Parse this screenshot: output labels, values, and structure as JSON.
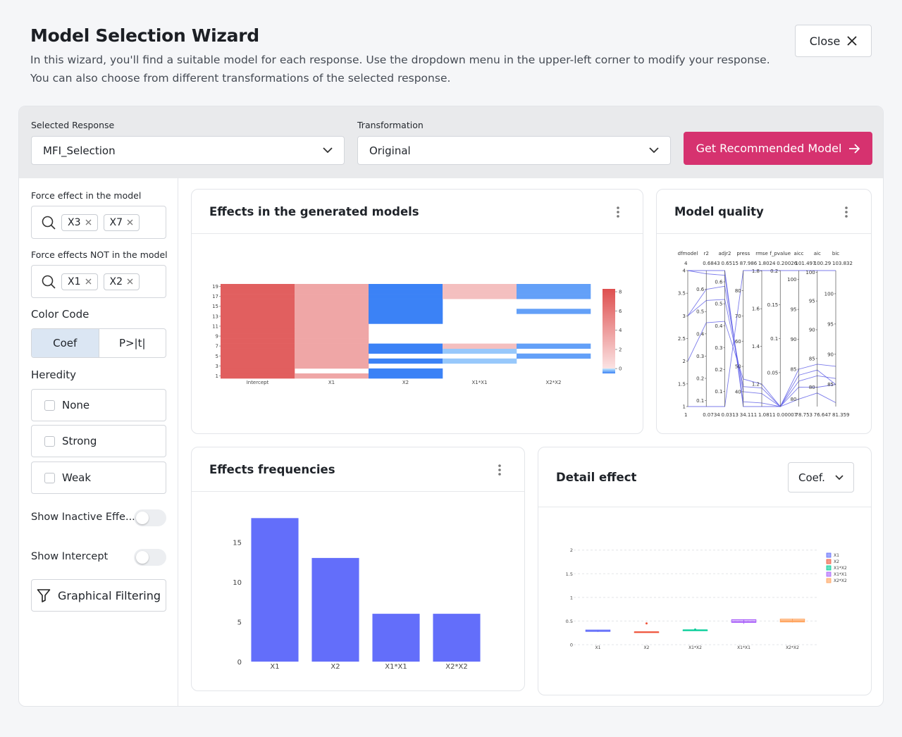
{
  "header": {
    "title": "Model Selection Wizard",
    "description": [
      "In this wizard, you'll find a suitable model for each response. Use the dropdown menu in the upper-left corner to modify your response.",
      "You can also choose from different transformations of the selected response."
    ],
    "close_button": "Close"
  },
  "controls": {
    "response_label": "Selected Response",
    "response_value": "MFI_Selection",
    "transformation_label": "Transformation",
    "transformation_value": "Original",
    "action_button": "Get Recommended Model"
  },
  "sidebar": {
    "force_in_label": "Force effect in the model",
    "force_in_chips": [
      "X3",
      "X7"
    ],
    "force_out_label": "Force effects NOT in the model",
    "force_out_chips": [
      "X1",
      "X2"
    ],
    "color_code_label": "Color Code",
    "color_code_options": [
      "Coef",
      "P>|t|"
    ],
    "heredity_label": "Heredity",
    "heredity_options": [
      "None",
      "Strong",
      "Weak"
    ],
    "toggles": [
      "Show Inactive Effe...",
      "Show Intercept"
    ],
    "filter_button": "Graphical Filtering"
  },
  "panels": [
    {
      "title": "Effects in the generated models",
      "chart_data": {
        "type": "heatmap",
        "x": [
          "Intercept",
          "X1",
          "X2",
          "X1*X1",
          "X2*X2"
        ],
        "y": [
          1,
          2,
          3,
          4,
          5,
          6,
          7,
          8,
          9,
          10,
          11,
          12,
          13,
          14,
          15,
          16,
          17,
          18,
          19
        ],
        "ylim": [
          0.5,
          19.5
        ],
        "yticks": [
          1,
          3,
          5,
          7,
          9,
          11,
          13,
          15,
          17,
          19
        ],
        "z": [
          [
            7.4,
            3.4,
            -0.5,
            null,
            null
          ],
          [
            7.4,
            null,
            -0.5,
            null,
            null
          ],
          [
            7.4,
            3.4,
            null,
            null,
            null
          ],
          [
            7.4,
            3.4,
            -0.5,
            -0.15,
            null
          ],
          [
            7.4,
            3.4,
            null,
            null,
            -0.35
          ],
          [
            7.4,
            3.4,
            -0.5,
            -0.15,
            null
          ],
          [
            7.4,
            3.4,
            -0.5,
            2,
            -0.35
          ],
          [
            7.4,
            3.4,
            null,
            null,
            null
          ],
          [
            7.4,
            3.4,
            null,
            null,
            null
          ],
          [
            7.4,
            3.4,
            null,
            null,
            null
          ],
          [
            7.4,
            3.4,
            null,
            null,
            null
          ],
          [
            7.4,
            3.4,
            -0.5,
            null,
            null
          ],
          [
            7.4,
            3.4,
            -0.5,
            null,
            null
          ],
          [
            7.4,
            3.4,
            -0.5,
            null,
            -0.35
          ],
          [
            7.4,
            3.4,
            -0.5,
            null,
            null
          ],
          [
            7.4,
            3.4,
            -0.5,
            null,
            null
          ],
          [
            7.4,
            3.4,
            -0.5,
            2,
            -0.35
          ],
          [
            7.4,
            3.4,
            -0.5,
            2,
            -0.35
          ],
          [
            7.4,
            3.4,
            -0.5,
            2,
            -0.35
          ]
        ],
        "zlim": [
          -0.5,
          8.3
        ],
        "colorbar_ticks": [
          0,
          2,
          4,
          6,
          8
        ],
        "colorscale": [
          "#3b82f6",
          "#bfe6fd",
          "#fbe3e3",
          "#de4f4f"
        ]
      }
    },
    {
      "title": "Model quality",
      "chart_data": {
        "type": "parcoords",
        "color": "#5a5ae6",
        "dimensions": [
          {
            "label": "dfmodel",
            "range": [
              1,
              4
            ],
            "ticks": [
              1,
              1.5,
              2,
              2.5,
              3,
              3.5,
              4
            ]
          },
          {
            "label": "r2",
            "range": [
              0.0734,
              0.6843
            ],
            "ticks": [
              0.1,
              0.2,
              0.3,
              0.4,
              0.5,
              0.6
            ]
          },
          {
            "label": "adjr2",
            "range": [
              0.0313,
              0.6515
            ],
            "ticks": [
              0.1,
              0.2,
              0.3,
              0.4,
              0.5,
              0.6
            ]
          },
          {
            "label": "press",
            "range": [
              34.111,
              87.986
            ],
            "ticks": [
              40,
              50,
              60,
              70,
              80
            ]
          },
          {
            "label": "rmse",
            "range": [
              1.0811,
              1.8024
            ],
            "ticks": [
              1.2,
              1.4,
              1.6,
              1.8
            ]
          },
          {
            "label": "f_pvalue",
            "range": [
              7e-05,
              0.20026
            ],
            "ticks": [
              0.05,
              0.1,
              0.15,
              0.2
            ]
          },
          {
            "label": "aicc",
            "range": [
              78.753,
              101.497
            ],
            "ticks": [
              80,
              85,
              90,
              95,
              100
            ]
          },
          {
            "label": "aic",
            "range": [
              76.647,
              100.29
            ],
            "ticks": [
              80,
              85,
              90,
              95,
              100
            ]
          },
          {
            "label": "bic",
            "range": [
              81.359,
              103.832
            ],
            "ticks": [
              85,
              90,
              95,
              100
            ]
          }
        ],
        "lines": [
          [
            4,
            0.6843,
            0.6515,
            34.111,
            1.0811,
            7e-05,
            85,
            84,
            88
          ],
          [
            3,
            0.6,
            0.58,
            40,
            1.15,
            7e-05,
            80,
            79,
            82
          ],
          [
            2,
            0.45,
            0.42,
            45,
            1.2,
            7e-05,
            82,
            80,
            85
          ],
          [
            1,
            0.0734,
            0.0313,
            87.986,
            1.8024,
            0.20026,
            101.497,
            100.29,
            103.832
          ],
          [
            4,
            0.67,
            0.63,
            36,
            1.1,
            7e-05,
            83,
            82,
            86
          ],
          [
            3,
            0.55,
            0.52,
            42,
            1.18,
            7e-05,
            84,
            83,
            85
          ]
        ]
      }
    },
    {
      "title": "Effects frequencies",
      "chart_data": {
        "type": "bar",
        "categories": [
          "X1",
          "X2",
          "X1*X1",
          "X2*X2"
        ],
        "values": [
          18,
          13,
          6,
          6
        ],
        "color": "#636efa",
        "ylim": [
          0,
          19
        ],
        "yticks": [
          0,
          5,
          10,
          15
        ]
      }
    },
    {
      "title": "Detail effect",
      "dropdown": "Coef.",
      "chart_data": {
        "type": "box",
        "categories": [
          "X1",
          "X2",
          "X1*X2",
          "X1*X1",
          "X2*X2"
        ],
        "ylim": [
          -0.09,
          2.16
        ],
        "yticks": [
          0,
          0.5,
          1,
          1.5,
          2
        ],
        "grid": true,
        "series": [
          {
            "name": "X1",
            "color": "#636efa",
            "values": [
              0.27,
              0.28,
              0.29,
              0.31,
              0.31
            ]
          },
          {
            "name": "X2",
            "color": "#ef553b",
            "values": [
              0.26,
              0.26,
              0.27,
              0.27,
              0.27
            ],
            "outliers": [
              0.45
            ]
          },
          {
            "name": "X1*X2",
            "color": "#00cc96",
            "values": [
              0.31,
              0.31,
              0.31,
              0.31,
              0.31
            ],
            "outliers": [
              0.32
            ]
          },
          {
            "name": "X1*X1",
            "color": "#ab63fa",
            "values": [
              0.44,
              0.47,
              0.48,
              0.53,
              0.53
            ]
          },
          {
            "name": "X2*X2",
            "color": "#ffa15a",
            "values": [
              0.47,
              0.48,
              0.5,
              0.54,
              0.55
            ]
          }
        ]
      }
    }
  ]
}
